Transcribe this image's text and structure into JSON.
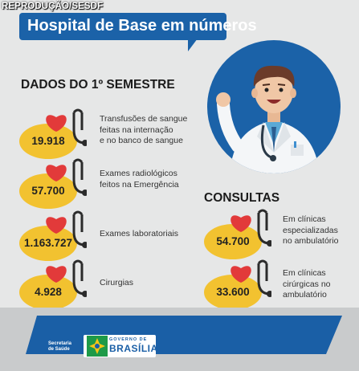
{
  "credit": "REPRODUÇÃO/SESDF",
  "title": "Hospital de Base em números",
  "semester": {
    "heading": "DADOS DO 1º SEMESTRE",
    "items": [
      {
        "value": "19.918",
        "lines": [
          "Transfusões de sangue",
          "feitas na internação",
          "e no banco de sangue"
        ]
      },
      {
        "value": "57.700",
        "lines": [
          "Exames radiológicos",
          "feitos na Emergência"
        ]
      },
      {
        "value": "1.163.727",
        "lines": [
          "Exames laboratoriais"
        ]
      },
      {
        "value": "4.928",
        "lines": [
          "Cirurgias"
        ]
      }
    ]
  },
  "consultas": {
    "heading": "CONSULTAS",
    "items": [
      {
        "value": "54.700",
        "lines": [
          "Em clínicas",
          "especializadas",
          "no ambulatório"
        ]
      },
      {
        "value": "33.600",
        "lines": [
          "Em clínicas",
          "cirúrgicas no",
          "ambulatório"
        ]
      }
    ]
  },
  "footer": {
    "secretaria": "Secretaria de Saúde",
    "gov_small": "GOVERNO DE",
    "gov_big": "BRASÍLIA"
  },
  "colors": {
    "brand_blue": "#1b62a8",
    "yellow": "#f2c230",
    "heart_red": "#e23a3a"
  },
  "icons": [
    "heart-icon",
    "stethoscope-icon",
    "doctor-illustration",
    "brasilia-logo"
  ]
}
